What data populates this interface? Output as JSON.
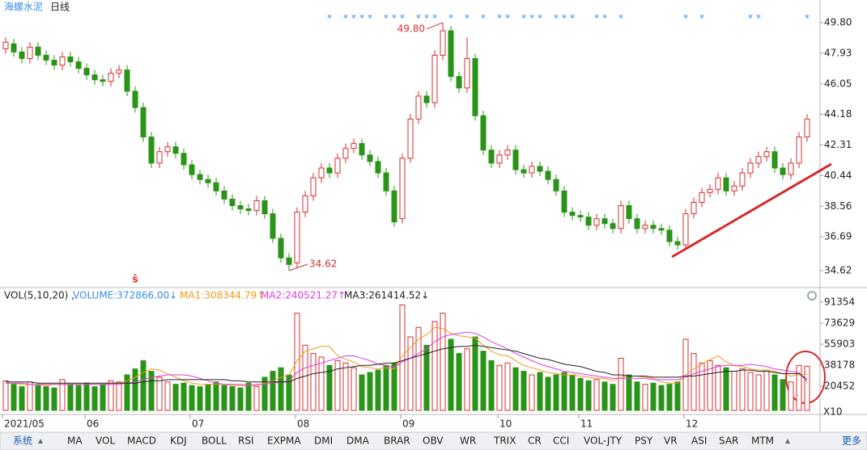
{
  "header": {
    "title": "海螺水泥",
    "period": "日线"
  },
  "chart_data": [
    {
      "type": "candlestick",
      "open": [
        48.2,
        48.5,
        48.0,
        47.6,
        48.3,
        47.8,
        47.5,
        47.2,
        47.7,
        47.4,
        47.0,
        46.6,
        46.3,
        46.2,
        46.7,
        46.9,
        45.6,
        44.6,
        42.8,
        41.2,
        41.9,
        42.2,
        41.8,
        41.1,
        40.5,
        40.2,
        40.0,
        39.5,
        39.0,
        38.6,
        38.4,
        38.3,
        38.9,
        38.1,
        36.6,
        35.4,
        35.1,
        38.2,
        39.2,
        40.3,
        40.9,
        40.6,
        41.5,
        42.1,
        42.4,
        41.7,
        41.3,
        40.6,
        39.5,
        37.8,
        41.5,
        43.9,
        45.3,
        44.9,
        47.8,
        49.3,
        46.5,
        45.8,
        47.6,
        44.1,
        42.0,
        41.2,
        41.7,
        42.0,
        40.8,
        40.6,
        41.0,
        40.7,
        40.2,
        39.5,
        38.2,
        38.0,
        37.9,
        37.4,
        37.8,
        37.5,
        37.2,
        38.6,
        37.8,
        37.2,
        37.4,
        37.2,
        37.1,
        36.4,
        36.2,
        38.1,
        38.8,
        39.4,
        39.6,
        40.3,
        39.5,
        39.8,
        40.6,
        41.2,
        41.6,
        41.9,
        40.9,
        40.5,
        41.2,
        42.8
      ],
      "high": [
        48.9,
        48.8,
        48.3,
        48.6,
        48.6,
        48.1,
        47.8,
        48.0,
        48.0,
        47.7,
        47.3,
        46.9,
        46.6,
        47.0,
        47.2,
        47.2,
        45.9,
        44.9,
        43.1,
        42.2,
        42.5,
        42.5,
        42.1,
        41.4,
        40.8,
        40.5,
        40.3,
        39.8,
        39.3,
        38.9,
        38.7,
        39.2,
        39.2,
        38.4,
        36.9,
        35.7,
        38.5,
        39.5,
        40.6,
        41.2,
        41.2,
        41.8,
        42.4,
        42.7,
        42.7,
        42.0,
        41.6,
        40.9,
        39.8,
        41.8,
        44.2,
        45.6,
        45.6,
        48.1,
        49.8,
        49.6,
        46.8,
        48.9,
        47.9,
        44.4,
        42.3,
        42.0,
        42.3,
        42.3,
        41.1,
        41.3,
        41.3,
        41.0,
        40.5,
        39.8,
        38.5,
        38.3,
        38.2,
        38.1,
        38.1,
        37.8,
        38.9,
        38.9,
        38.1,
        37.7,
        37.7,
        37.5,
        37.4,
        36.7,
        38.4,
        39.1,
        39.7,
        39.9,
        40.6,
        40.6,
        40.1,
        40.9,
        41.5,
        41.9,
        42.2,
        42.2,
        41.2,
        41.5,
        43.1,
        44.2
      ],
      "low": [
        47.9,
        47.7,
        47.3,
        47.3,
        47.5,
        47.2,
        46.9,
        46.9,
        47.1,
        46.7,
        46.3,
        46.0,
        45.9,
        45.9,
        46.4,
        45.3,
        44.3,
        42.5,
        40.9,
        40.9,
        41.6,
        41.5,
        40.8,
        40.2,
        39.9,
        39.7,
        39.2,
        38.7,
        38.3,
        38.1,
        38.0,
        38.0,
        37.8,
        36.3,
        35.1,
        34.62,
        34.8,
        37.9,
        38.9,
        40.0,
        40.3,
        40.3,
        41.2,
        41.8,
        41.4,
        41.0,
        40.3,
        39.2,
        37.3,
        37.5,
        41.2,
        43.6,
        44.6,
        44.6,
        47.5,
        46.2,
        45.5,
        45.5,
        43.8,
        41.7,
        40.9,
        40.9,
        41.4,
        40.5,
        40.3,
        40.3,
        40.4,
        39.9,
        39.2,
        37.9,
        37.7,
        37.6,
        37.1,
        37.1,
        37.2,
        36.9,
        36.9,
        37.5,
        36.9,
        36.9,
        36.9,
        36.8,
        36.1,
        35.9,
        35.9,
        37.8,
        38.5,
        39.1,
        39.3,
        39.2,
        39.2,
        39.5,
        40.3,
        40.9,
        41.3,
        40.6,
        40.2,
        40.2,
        40.9,
        42.5
      ],
      "close": [
        48.6,
        48.0,
        47.6,
        48.3,
        47.8,
        47.5,
        47.2,
        47.7,
        47.4,
        47.0,
        46.6,
        46.3,
        46.2,
        46.7,
        46.9,
        45.6,
        44.6,
        42.8,
        41.2,
        41.9,
        42.2,
        41.8,
        41.1,
        40.5,
        40.2,
        40.0,
        39.5,
        39.0,
        38.6,
        38.4,
        38.3,
        38.9,
        38.1,
        36.6,
        35.4,
        35.0,
        38.2,
        39.2,
        40.3,
        40.9,
        40.6,
        41.5,
        42.1,
        42.4,
        41.7,
        41.3,
        40.6,
        39.5,
        37.6,
        41.5,
        43.9,
        45.3,
        44.9,
        47.8,
        49.3,
        46.5,
        45.8,
        47.6,
        44.1,
        42.0,
        41.2,
        41.7,
        42.0,
        40.8,
        40.6,
        41.0,
        40.7,
        40.2,
        39.5,
        38.2,
        38.0,
        37.9,
        37.4,
        37.8,
        37.5,
        37.2,
        38.6,
        37.8,
        37.2,
        37.4,
        37.2,
        37.1,
        36.4,
        36.2,
        38.1,
        38.8,
        39.4,
        39.6,
        40.3,
        39.5,
        39.8,
        40.6,
        41.2,
        41.6,
        41.9,
        40.9,
        40.5,
        41.2,
        42.8,
        43.9
      ],
      "up_color": "#d62f2f",
      "down_color": "#2a9418",
      "ylim": [
        33.88,
        50.44
      ],
      "yticks": [
        {
          "value": 49.8,
          "label": "49.80"
        },
        47.93,
        46.05,
        44.18,
        42.31,
        40.44,
        38.56,
        36.69,
        34.62
      ],
      "grid": false,
      "annotations": [
        {
          "index": 54,
          "value": 49.8,
          "label": "49.80"
        },
        {
          "index": 35,
          "value": 34.62,
          "label": "34.62"
        }
      ],
      "signals": {
        "symbol": "*",
        "color": "#3a8ee6",
        "indices": [
          40,
          42,
          43,
          44,
          45,
          47,
          48,
          49,
          51,
          52,
          53,
          55,
          57,
          59,
          61,
          62,
          64,
          65,
          66,
          68,
          69,
          70,
          73,
          74,
          76,
          84,
          86,
          92,
          93,
          99
        ]
      },
      "sell_mark": {
        "index": 16,
        "label": "ŝ",
        "color": "#d62f2f"
      }
    },
    {
      "type": "bar",
      "indicator": "VOL(5,10,20) ,",
      "up_color": "#d62f2f",
      "down_color": "#2a9418",
      "series": [
        {
          "name": "VOLUME:372866.00↓",
          "color": "#3a8ee6",
          "values": [
            25000,
            22000,
            20000,
            24000,
            21000,
            20000,
            19000,
            26000,
            22000,
            21000,
            23000,
            20000,
            22000,
            25000,
            24000,
            30000,
            35000,
            42000,
            33000,
            28000,
            24000,
            22000,
            23000,
            21000,
            20000,
            22000,
            24000,
            21000,
            20000,
            19000,
            23000,
            20000,
            28000,
            33000,
            36000,
            30000,
            82000,
            55000,
            48000,
            45000,
            38000,
            42000,
            40000,
            36000,
            30000,
            32000,
            34000,
            38000,
            40000,
            89000,
            62000,
            70000,
            55000,
            75000,
            82000,
            60000,
            48000,
            52000,
            62000,
            50000,
            42000,
            38000,
            40000,
            36000,
            33000,
            30000,
            32000,
            28000,
            30000,
            32000,
            30000,
            27000,
            25000,
            26000,
            24000,
            22000,
            44000,
            30000,
            24000,
            22000,
            23000,
            21000,
            22000,
            24000,
            60000,
            48000,
            40000,
            42000,
            38000,
            36000,
            33000,
            35000,
            32000,
            30000,
            34000,
            30000,
            26000,
            24000,
            38000,
            37287
          ]
        },
        {
          "name": "MA1:308344.79↑",
          "color": "#f09a1c",
          "values": [
            23000,
            23000,
            22000,
            22000,
            22000,
            21000,
            22000,
            22000,
            22000,
            22000,
            22000,
            22000,
            22000,
            23000,
            23000,
            25000,
            28000,
            32000,
            35000,
            34000,
            31000,
            28000,
            25000,
            23000,
            22000,
            22000,
            22000,
            22000,
            21000,
            21000,
            21000,
            21000,
            23000,
            25000,
            28000,
            30000,
            42000,
            50000,
            52000,
            54000,
            54000,
            46000,
            43000,
            41000,
            37000,
            36000,
            35000,
            36000,
            35000,
            46000,
            53000,
            60000,
            64000,
            70000,
            69000,
            65000,
            63000,
            62000,
            61000,
            55000,
            50000,
            47000,
            46000,
            42000,
            38000,
            36000,
            34000,
            32000,
            31000,
            30000,
            30000,
            29000,
            28000,
            27000,
            27000,
            25000,
            28000,
            29000,
            29000,
            28000,
            27000,
            24000,
            23000,
            23000,
            30000,
            35000,
            39000,
            43000,
            46000,
            41000,
            38000,
            37000,
            35000,
            34000,
            34000,
            33000,
            31000,
            29000,
            30000,
            30834
          ]
        },
        {
          "name": "MA2:240521.27↑",
          "color": "#e03ce0",
          "values": [
            23000,
            23000,
            23000,
            22000,
            22000,
            22000,
            22000,
            22000,
            22000,
            22000,
            22000,
            22000,
            22000,
            22000,
            22000,
            23000,
            24000,
            26000,
            28000,
            29000,
            30000,
            30000,
            30000,
            29000,
            27000,
            25000,
            23000,
            22000,
            22000,
            22000,
            21000,
            22000,
            22000,
            23000,
            24000,
            25000,
            32000,
            36000,
            38000,
            40000,
            42000,
            44000,
            46000,
            46000,
            44000,
            42000,
            39000,
            38000,
            36000,
            41000,
            44000,
            48000,
            52000,
            58000,
            62000,
            64000,
            65000,
            66000,
            65000,
            62000,
            58000,
            55000,
            52000,
            48000,
            45000,
            42000,
            39000,
            37000,
            35000,
            33000,
            32000,
            31000,
            30000,
            29000,
            28000,
            27000,
            27000,
            27000,
            27000,
            27000,
            26000,
            26000,
            26000,
            26000,
            28000,
            31000,
            33000,
            35000,
            37000,
            38000,
            38000,
            38000,
            39000,
            38000,
            37000,
            35000,
            34000,
            33000,
            32000,
            24052
          ]
        },
        {
          "name": "MA3:261414.52↓",
          "color": "#222222",
          "values": [
            24000,
            24000,
            24000,
            24000,
            23000,
            23000,
            23000,
            23000,
            23000,
            23000,
            23000,
            23000,
            23000,
            23000,
            23000,
            23000,
            23000,
            24000,
            25000,
            25000,
            26000,
            26000,
            26000,
            26000,
            26000,
            26000,
            26000,
            26000,
            25000,
            25000,
            24000,
            24000,
            24000,
            24000,
            24000,
            24000,
            27000,
            29000,
            31000,
            32000,
            33000,
            35000,
            36000,
            37000,
            38000,
            38000,
            39000,
            40000,
            40000,
            42000,
            44000,
            46000,
            48000,
            50000,
            52000,
            53000,
            54000,
            54000,
            55000,
            54000,
            53000,
            52000,
            51000,
            50000,
            48000,
            46000,
            44000,
            43000,
            41000,
            39000,
            38000,
            37000,
            35000,
            33000,
            32000,
            30000,
            30000,
            29000,
            29000,
            29000,
            28000,
            28000,
            28000,
            28000,
            29000,
            29000,
            30000,
            31000,
            32000,
            33000,
            33000,
            34000,
            34000,
            33000,
            33000,
            32000,
            31000,
            31000,
            31000,
            26141
          ]
        }
      ],
      "ylim": [
        0,
        97480
      ],
      "yticks": [
        91354,
        73629,
        55903,
        38178,
        20452
      ],
      "unit_label": "X10",
      "xticks": [
        {
          "value": 0,
          "label": "2021/05"
        },
        {
          "value": 10,
          "label": "06"
        },
        {
          "value": 23,
          "label": "07"
        },
        {
          "value": 36,
          "label": "08"
        },
        {
          "value": 49,
          "label": "09"
        },
        {
          "value": 61,
          "label": "10"
        },
        {
          "value": 71,
          "label": "11"
        },
        {
          "value": 84,
          "label": "12"
        }
      ]
    }
  ],
  "toolbar": {
    "items": [
      "系统",
      "MA",
      "VOL",
      "MACD",
      "KDJ",
      "BOLL",
      "RSI",
      "EXPMA",
      "DMI",
      "DMA",
      "BRAR",
      "OBV",
      "WR",
      "TRIX",
      "CR",
      "CCI",
      "VOL-JTY",
      "PSY",
      "VR",
      "ASI",
      "SAR",
      "MTM"
    ],
    "more": "更多"
  }
}
